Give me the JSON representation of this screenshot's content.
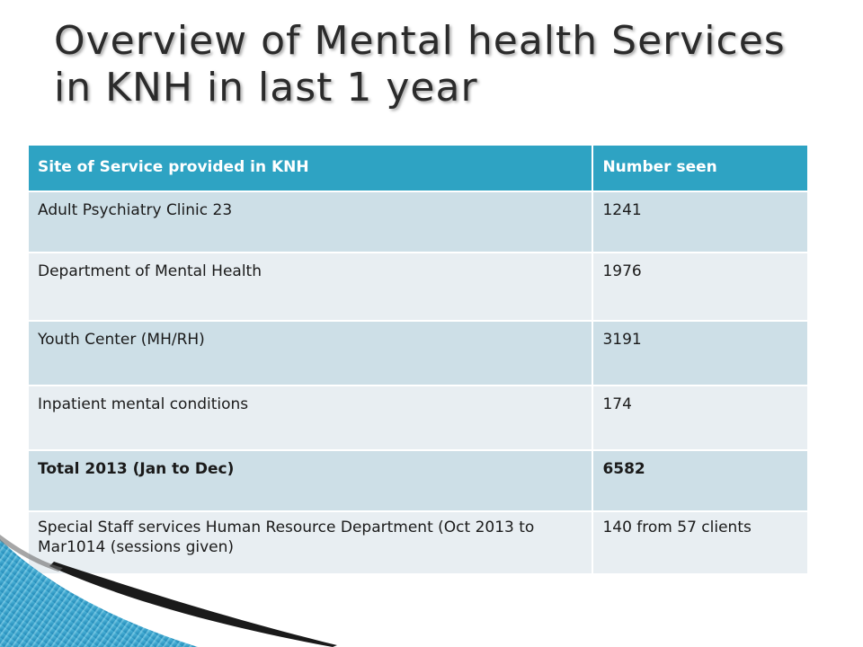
{
  "slide": {
    "title_line1": "Overview of Mental health Services",
    "title_line2": "in KNH in last 1 year"
  },
  "table": {
    "headers": [
      "Site of Service provided in KNH",
      "Number seen"
    ],
    "rows": [
      {
        "site": "Adult Psychiatry Clinic 23",
        "count": "1241"
      },
      {
        "site": "Department of Mental Health",
        "count": "1976"
      },
      {
        "site": "Youth Center (MH/RH)",
        "count": "3191"
      },
      {
        "site": "Inpatient mental conditions",
        "count": "174"
      },
      {
        "site": "Total 2013 (Jan to Dec)",
        "count": "6582"
      },
      {
        "site": "Special Staff services Human Resource Department (Oct 2013 to Mar1014 (sessions given)",
        "count": "140 from 57 clients"
      }
    ]
  },
  "colors": {
    "header_bg": "#2ea3c3",
    "row_dark": "#cddfe7",
    "row_light": "#e8eef2",
    "swoosh_blue": "#2d9cc6"
  }
}
